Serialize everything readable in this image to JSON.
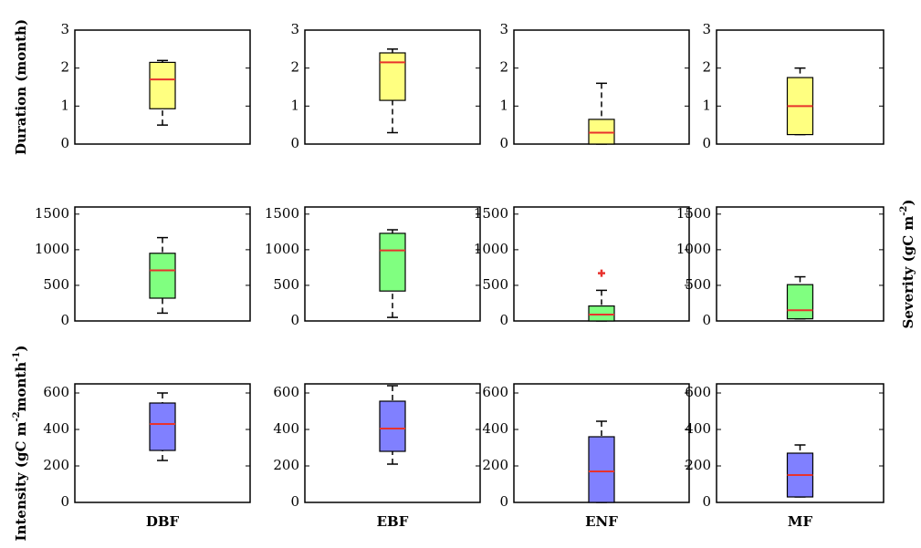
{
  "chart_data": [
    {
      "type": "box",
      "ylabel": [
        {
          "text": "Duration (month)"
        }
      ],
      "ylim": [
        0,
        3
      ],
      "yticks": [
        0,
        1,
        2,
        3
      ],
      "color": "#ffff80",
      "median_color": "#e8322d",
      "whisker_low": 0.5,
      "q1": 0.93,
      "median": 1.7,
      "q3": 2.15,
      "whisker_high": 2.2
    },
    {
      "type": "box",
      "ylim": [
        0,
        3
      ],
      "yticks": [
        0,
        1,
        2,
        3
      ],
      "color": "#ffff80",
      "median_color": "#e8322d",
      "whisker_low": 0.3,
      "q1": 1.15,
      "median": 2.15,
      "q3": 2.4,
      "whisker_high": 2.5
    },
    {
      "type": "box",
      "ylim": [
        0,
        3
      ],
      "yticks": [
        0,
        1,
        2,
        3
      ],
      "color": "#ffff80",
      "median_color": "#e8322d",
      "whisker_low": 0,
      "q1": 0,
      "median": 0.3,
      "q3": 0.65,
      "whisker_high": 1.6
    },
    {
      "type": "box",
      "ylim": [
        0,
        3
      ],
      "yticks": [
        0,
        1,
        2,
        3
      ],
      "color": "#ffff80",
      "median_color": "#e8322d",
      "whisker_low": 0.25,
      "q1": 0.25,
      "median": 1.0,
      "q3": 1.75,
      "whisker_high": 2.0
    },
    {
      "type": "box",
      "ylim": [
        0,
        1600
      ],
      "yticks": [
        0,
        500,
        1000,
        1500
      ],
      "color": "#80ff80",
      "median_color": "#e8322d",
      "whisker_low": 110,
      "q1": 320,
      "median": 710,
      "q3": 950,
      "whisker_high": 1170
    },
    {
      "type": "box",
      "ylim": [
        0,
        1600
      ],
      "yticks": [
        0,
        500,
        1000,
        1500
      ],
      "color": "#80ff80",
      "median_color": "#e8322d",
      "whisker_low": 50,
      "q1": 420,
      "median": 990,
      "q3": 1230,
      "whisker_high": 1280
    },
    {
      "type": "box",
      "ylim": [
        0,
        1600
      ],
      "yticks": [
        0,
        500,
        1000,
        1500
      ],
      "color": "#80ff80",
      "median_color": "#e8322d",
      "whisker_low": 0,
      "q1": 0,
      "median": 90,
      "q3": 210,
      "whisker_high": 430,
      "outliers": [
        670
      ]
    },
    {
      "type": "box",
      "ylabel": [
        {
          "text": "Severity (gC m"
        },
        {
          "text": "-2",
          "sup": true
        },
        {
          "text": ")"
        }
      ],
      "ylabel_side": "right",
      "ylim": [
        0,
        1600
      ],
      "yticks": [
        0,
        500,
        1000,
        1500
      ],
      "color": "#80ff80",
      "median_color": "#e8322d",
      "whisker_low": 30,
      "q1": 30,
      "median": 150,
      "q3": 510,
      "whisker_high": 620
    },
    {
      "type": "box",
      "ylabel": [
        {
          "text": "Intensity (gC m"
        },
        {
          "text": "-2",
          "sup": true
        },
        {
          "text": "month"
        },
        {
          "text": "-1",
          "sup": true
        },
        {
          "text": ")"
        }
      ],
      "xlabel": "DBF",
      "ylim": [
        0,
        650
      ],
      "yticks": [
        0,
        200,
        400,
        600
      ],
      "color": "#8080ff",
      "median_color": "#e8322d",
      "whisker_low": 230,
      "q1": 285,
      "median": 430,
      "q3": 545,
      "whisker_high": 600
    },
    {
      "type": "box",
      "xlabel": "EBF",
      "ylim": [
        0,
        650
      ],
      "yticks": [
        0,
        200,
        400,
        600
      ],
      "color": "#8080ff",
      "median_color": "#e8322d",
      "whisker_low": 210,
      "q1": 280,
      "median": 405,
      "q3": 555,
      "whisker_high": 640
    },
    {
      "type": "box",
      "xlabel": "ENF",
      "ylim": [
        0,
        650
      ],
      "yticks": [
        0,
        200,
        400,
        600
      ],
      "color": "#8080ff",
      "median_color": "#e8322d",
      "whisker_low": 0,
      "q1": 0,
      "median": 170,
      "q3": 360,
      "whisker_high": 445
    },
    {
      "type": "box",
      "xlabel": "MF",
      "ylim": [
        0,
        650
      ],
      "yticks": [
        0,
        200,
        400,
        600
      ],
      "color": "#8080ff",
      "median_color": "#e8322d",
      "whisker_low": 30,
      "q1": 30,
      "median": 150,
      "q3": 270,
      "whisker_high": 315
    }
  ]
}
